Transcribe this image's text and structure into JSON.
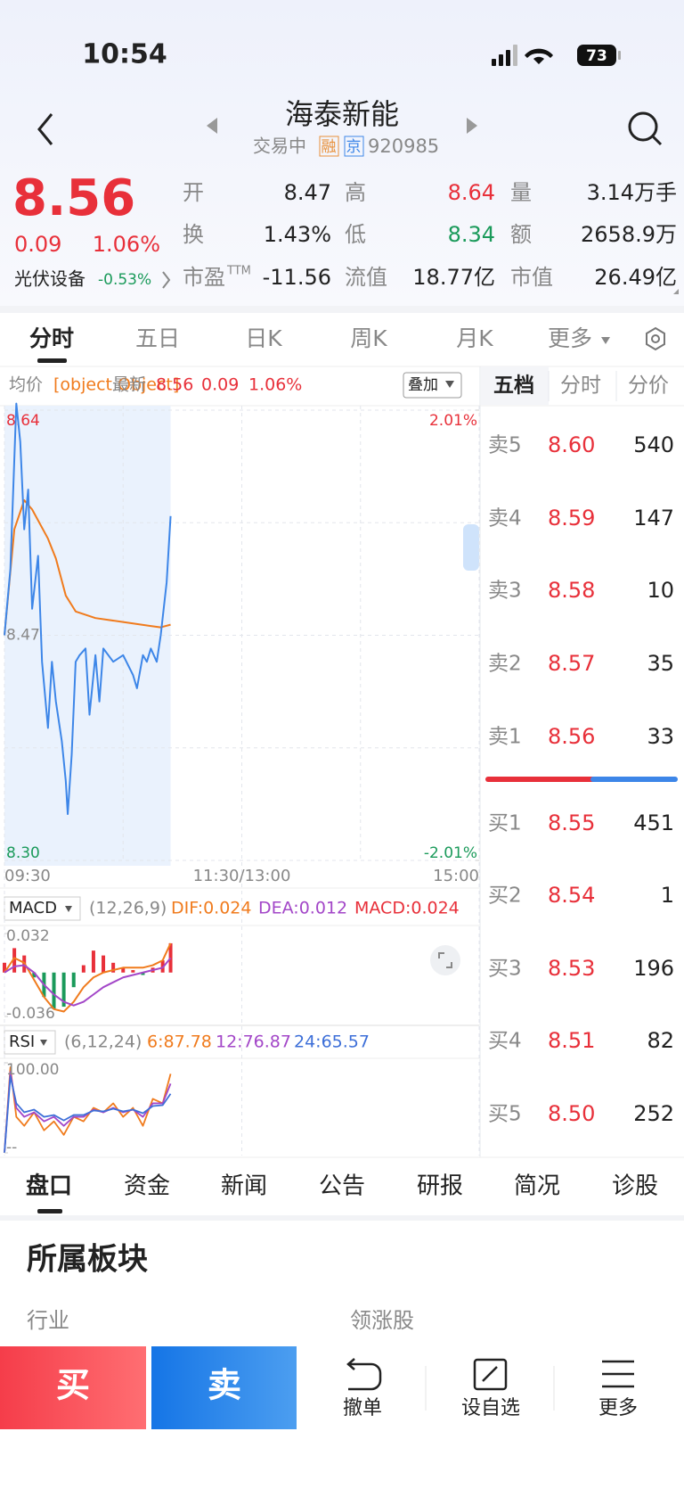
{
  "status": {
    "time": "10:54",
    "battery": "73"
  },
  "header": {
    "title": "海泰新能",
    "state": "交易中",
    "tags": [
      "融",
      "京"
    ],
    "code": "920985"
  },
  "quote": {
    "price": "8.56",
    "change": "0.09",
    "change_pct": "1.06%",
    "sector": "光伏设备",
    "sector_change": "-0.53%",
    "stats": [
      [
        {
          "label": "开",
          "value": "8.47"
        },
        {
          "label": "高",
          "value": "8.64",
          "color": "#e8303a"
        },
        {
          "label": "量",
          "value": "3.14万手"
        }
      ],
      [
        {
          "label": "换",
          "value": "1.43%"
        },
        {
          "label": "低",
          "value": "8.34",
          "color": "#1a9a5a"
        },
        {
          "label": "额",
          "value": "2658.9万"
        }
      ],
      [
        {
          "label": "市盈",
          "sup": "TTM",
          "value": "-11.56"
        },
        {
          "label": "流值",
          "value": "18.77亿"
        },
        {
          "label": "市值",
          "value": "26.49亿"
        }
      ]
    ]
  },
  "tabs": [
    "分时",
    "五日",
    "日K",
    "周K",
    "月K",
    "更多"
  ],
  "intraday": {
    "avg_label": "均价",
    "avg": {
      "color": "#f07b1d",
      "x": [
        0,
        5,
        10,
        14,
        22,
        26,
        31,
        36,
        46,
        60,
        74,
        79,
        84
      ],
      "values": [
        8.47,
        8.55,
        8.572,
        8.565,
        8.543,
        8.528,
        8.5,
        8.488,
        8.483,
        8.48,
        8.477,
        8.476,
        8.478
      ]
    },
    "latest_label": "最新",
    "latest": "8.56",
    "change": "0.09",
    "change_pct": "1.06%",
    "overlay": "叠加",
    "ylim": [
      8.3,
      8.64
    ],
    "yticks": [
      8.64,
      8.47,
      {
        "value": 8.3,
        "label": "8.30"
      }
    ],
    "pct_ticks": [
      {
        "value": 8.64,
        "label": "2.01%"
      },
      {
        "value": 8.3,
        "label": "-2.01%"
      }
    ],
    "xlim": [
      0,
      240
    ],
    "xticks": [
      {
        "value": 0,
        "label": "09:30"
      },
      {
        "value": 120,
        "label": "11:30/13:00"
      },
      {
        "value": 240,
        "label": "15:00"
      }
    ],
    "price": {
      "color": "#3d86e8",
      "x": [
        0,
        3,
        6,
        8,
        10,
        12,
        14,
        17,
        19,
        22,
        24,
        26,
        29,
        31,
        32,
        34,
        36,
        38,
        41,
        43,
        46,
        48,
        50,
        55,
        60,
        65,
        67,
        70,
        72,
        74,
        77,
        79,
        82,
        84
      ],
      "values": [
        8.47,
        8.52,
        8.645,
        8.616,
        8.55,
        8.58,
        8.49,
        8.53,
        8.45,
        8.4,
        8.45,
        8.42,
        8.39,
        8.36,
        8.335,
        8.38,
        8.45,
        8.455,
        8.46,
        8.41,
        8.455,
        8.42,
        8.46,
        8.45,
        8.455,
        8.44,
        8.43,
        8.455,
        8.45,
        8.46,
        8.45,
        8.47,
        8.51,
        8.56
      ]
    }
  },
  "macd": {
    "name": "MACD",
    "params": "(12,26,9)",
    "dif_label": "DIF:0.024",
    "dea_label": "DEA:0.012",
    "macd_label": "MACD:0.024",
    "ylim": [
      -0.036,
      0.032
    ],
    "yticks": [
      0.032,
      -0.036
    ],
    "up_color": "#e8303a",
    "down_color": "#1a9a5a",
    "x": [
      0,
      5,
      10,
      15,
      20,
      25,
      30,
      35,
      40,
      45,
      50,
      55,
      60,
      65,
      70,
      75,
      80,
      84
    ],
    "hist": [
      0.008,
      0.02,
      0.014,
      -0.004,
      -0.02,
      -0.03,
      -0.028,
      -0.012,
      0.006,
      0.018,
      0.014,
      0.008,
      0.004,
      0.002,
      -0.002,
      0.004,
      0.01,
      0.024
    ],
    "dif": {
      "color": "#f07b1d",
      "values": [
        0,
        0.012,
        0.008,
        -0.006,
        -0.02,
        -0.03,
        -0.032,
        -0.024,
        -0.012,
        -0.004,
        0,
        0.002,
        0.004,
        0.004,
        0.004,
        0.006,
        0.01,
        0.024
      ]
    },
    "dea": {
      "color": "#a347c8",
      "values": [
        0,
        0.005,
        0.006,
        0,
        -0.01,
        -0.018,
        -0.024,
        -0.027,
        -0.024,
        -0.018,
        -0.012,
        -0.008,
        -0.004,
        -0.002,
        0,
        0.002,
        0.004,
        0.012
      ]
    }
  },
  "rsi": {
    "name": "RSI",
    "params": "(6,12,24)",
    "ylim": [
      0,
      100
    ],
    "yticks": [
      {
        "value": 100,
        "label": "100.00"
      },
      {
        "value": 0,
        "label": "--"
      }
    ],
    "x": [
      0,
      3,
      6,
      10,
      15,
      20,
      25,
      30,
      35,
      40,
      45,
      50,
      55,
      60,
      65,
      70,
      75,
      80,
      84
    ],
    "series": [
      {
        "name": "6:87.78",
        "color": "#f07b1d",
        "values": [
          0,
          95,
          40,
          30,
          45,
          25,
          35,
          20,
          40,
          35,
          50,
          45,
          55,
          40,
          50,
          30,
          60,
          55,
          87.78
        ]
      },
      {
        "name": "12:76.87",
        "color": "#a347c8",
        "values": [
          0,
          90,
          50,
          40,
          45,
          35,
          40,
          30,
          40,
          40,
          48,
          45,
          50,
          45,
          48,
          40,
          55,
          55,
          76.87
        ]
      },
      {
        "name": "24:65.57",
        "color": "#3d6fd8",
        "values": [
          0,
          85,
          55,
          45,
          48,
          40,
          42,
          36,
          42,
          42,
          47,
          46,
          49,
          46,
          48,
          44,
          52,
          53,
          65.57
        ]
      }
    ]
  },
  "orderbook": {
    "tabs": [
      "五档",
      "分时",
      "分价"
    ],
    "asks": [
      {
        "label": "卖5",
        "price": "8.60",
        "volume": 540
      },
      {
        "label": "卖4",
        "price": "8.59",
        "volume": 147
      },
      {
        "label": "卖3",
        "price": "8.58",
        "volume": 10
      },
      {
        "label": "卖2",
        "price": "8.57",
        "volume": 35
      },
      {
        "label": "卖1",
        "price": "8.56",
        "volume": 33
      }
    ],
    "bids": [
      {
        "label": "买1",
        "price": "8.55",
        "volume": 451
      },
      {
        "label": "买2",
        "price": "8.54",
        "volume": 1
      },
      {
        "label": "买3",
        "price": "8.53",
        "volume": 196
      },
      {
        "label": "买4",
        "price": "8.51",
        "volume": 82
      },
      {
        "label": "买5",
        "price": "8.50",
        "volume": 252
      }
    ]
  },
  "bottom_tabs": [
    "盘口",
    "资金",
    "新闻",
    "公告",
    "研报",
    "简况",
    "诊股"
  ],
  "section": {
    "title": "所属板块",
    "industry": "行业",
    "leader": "领涨股"
  },
  "actions": {
    "buy": "买",
    "sell": "卖",
    "items": [
      "撤单",
      "设自选",
      "更多"
    ]
  }
}
